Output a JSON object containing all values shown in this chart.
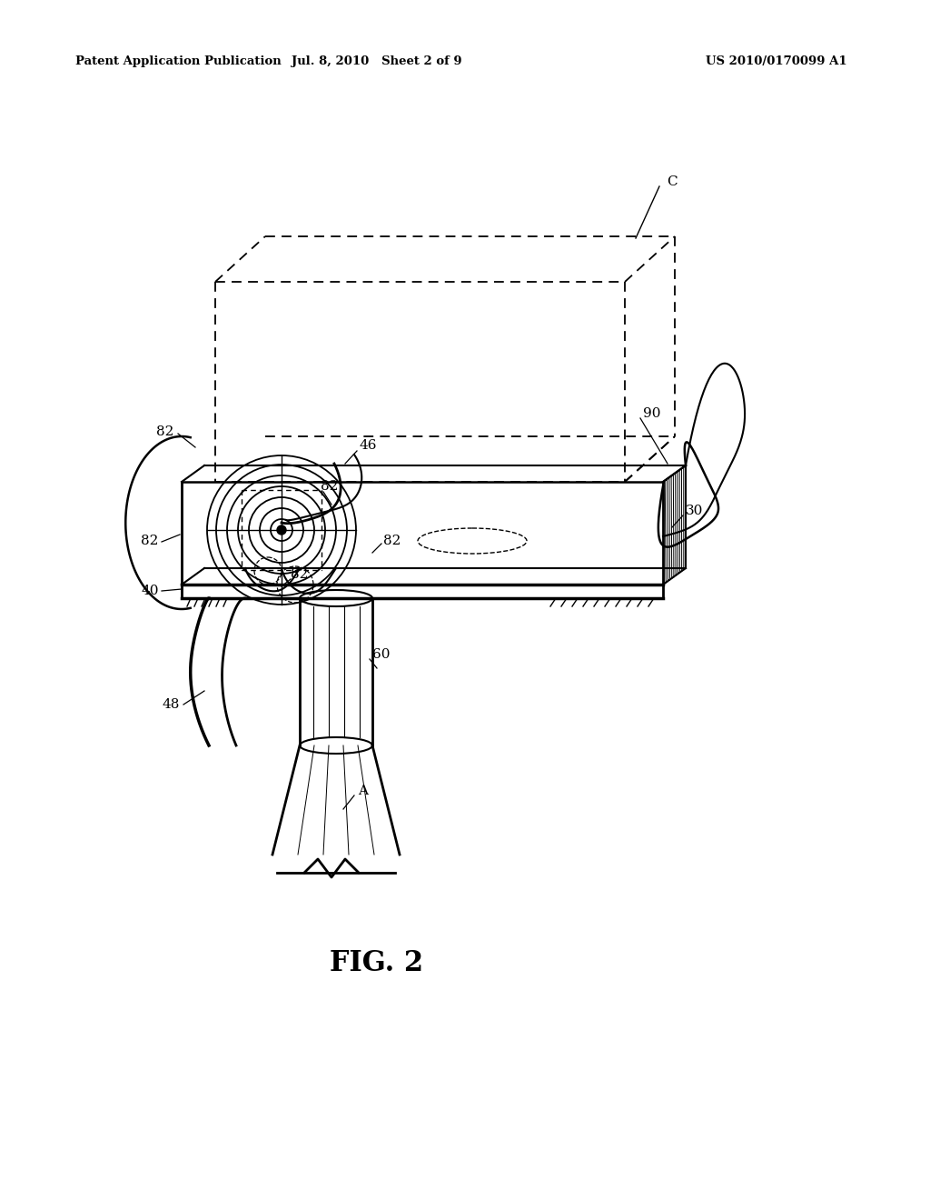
{
  "header_left": "Patent Application Publication",
  "header_mid": "Jul. 8, 2010   Sheet 2 of 9",
  "header_right": "US 2010/0170099 A1",
  "bg_color": "#ffffff",
  "line_color": "#000000",
  "fig_label": "FIG. 2"
}
